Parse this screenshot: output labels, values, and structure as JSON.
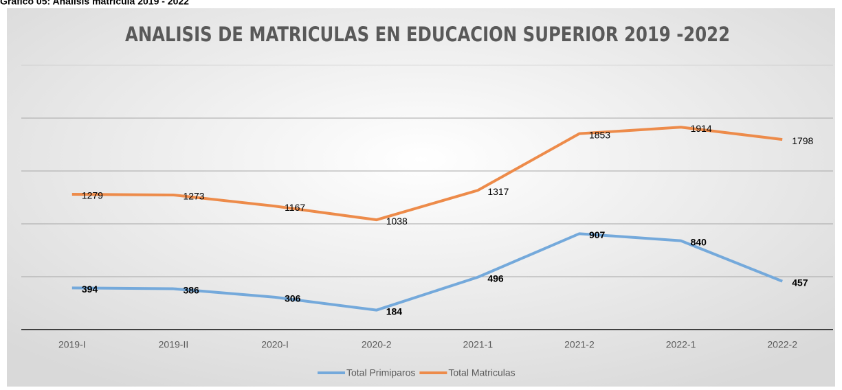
{
  "caption": "Grafico 05: Analisis matricula 2019 - 2022",
  "chart_data": {
    "type": "line",
    "title": "ANALISIS DE MATRICULAS EN EDUCACION SUPERIOR 2019 -2022",
    "categories": [
      "2019-I",
      "2019-II",
      "2020-I",
      "2020-2",
      "2021-1",
      "2021-2",
      "2022-1",
      "2022-2"
    ],
    "series": [
      {
        "name": "Total Primiparos",
        "color": "#74a9db",
        "values": [
          394,
          386,
          306,
          184,
          496,
          907,
          840,
          457
        ]
      },
      {
        "name": "Total Matriculas",
        "color": "#ed8b4a",
        "values": [
          1279,
          1273,
          1167,
          1038,
          1317,
          1853,
          1914,
          1798
        ]
      }
    ],
    "ylim": [
      0,
      2500
    ],
    "yticks": [
      0,
      500,
      1000,
      1500,
      2000,
      2500
    ],
    "grid": true,
    "legend": "bottom"
  }
}
